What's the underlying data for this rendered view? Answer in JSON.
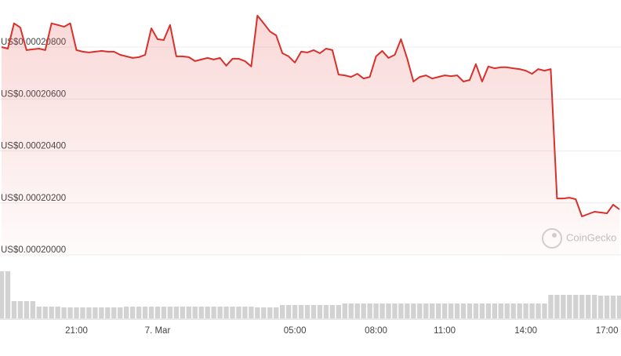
{
  "chart_data": {
    "type": "line",
    "categories": [
      null,
      null,
      null,
      null,
      null,
      null,
      null,
      null,
      null,
      null,
      null,
      null,
      "21:00",
      null,
      null,
      null,
      null,
      null,
      null,
      null,
      null,
      null,
      null,
      null,
      null,
      "7. Mar",
      null,
      null,
      null,
      null,
      null,
      null,
      null,
      null,
      null,
      null,
      null,
      null,
      null,
      null,
      null,
      null,
      null,
      null,
      null,
      null,
      null,
      "05:00",
      null,
      null,
      null,
      null,
      null,
      null,
      null,
      null,
      null,
      null,
      null,
      null,
      "08:00",
      null,
      null,
      null,
      null,
      null,
      null,
      null,
      null,
      null,
      null,
      "11:00",
      null,
      null,
      null,
      null,
      null,
      null,
      null,
      null,
      null,
      null,
      null,
      null,
      "14:00",
      null,
      null,
      null,
      null,
      null,
      null,
      null,
      null,
      null,
      null,
      null,
      null,
      "17:00",
      null,
      null
    ],
    "series": [
      {
        "color": "#d8312c",
        "values": [
          0.000208,
          0.00020794,
          0.00020891,
          0.00020875,
          0.00020788,
          0.00020791,
          0.00020794,
          0.00020788,
          0.00020891,
          0.00020885,
          0.00020878,
          0.00020891,
          0.00020788,
          0.00020782,
          0.00020779,
          0.00020782,
          0.00020785,
          0.00020782,
          0.00020782,
          0.0002077,
          0.00020764,
          0.00020758,
          0.00020761,
          0.0002077,
          0.00020872,
          0.0002083,
          0.00020827,
          0.00020885,
          0.00020764,
          0.00020764,
          0.00020761,
          0.00020746,
          0.00020752,
          0.00020758,
          0.00020752,
          0.00020758,
          0.00020728,
          0.00020755,
          0.00020755,
          0.00020746,
          0.00020725,
          0.00020921,
          0.00020891,
          0.0002086,
          0.00020845,
          0.00020776,
          0.00020764,
          0.0002074,
          0.00020782,
          0.00020779,
          0.00020788,
          0.00020776,
          0.00020794,
          0.00020788,
          0.00020694,
          0.00020691,
          0.00020685,
          0.00020697,
          0.00020679,
          0.00020685,
          0.00020764,
          0.00020785,
          0.00020758,
          0.0002077,
          0.0002083,
          0.00020755,
          0.00020667,
          0.00020685,
          0.00020691,
          0.00020679,
          0.00020685,
          0.00020691,
          0.00020688,
          0.00020691,
          0.00020667,
          0.00020673,
          0.00020734,
          0.00020667,
          0.00020725,
          0.00020718,
          0.00020722,
          0.00020722,
          0.00020718,
          0.00020715,
          0.00020709,
          0.00020697,
          0.00020715,
          0.00020709,
          0.00020715,
          0.00020217,
          0.00020217,
          0.0002022,
          0.00020214,
          0.00020148,
          0.00020157,
          0.00020166,
          0.00020163,
          0.0002016,
          0.00020193,
          0.00020175
        ]
      }
    ],
    "ylim": [
      0.0002,
      0.00020981
    ],
    "yticks": [
      {
        "value": 0.0002,
        "label": "US$0.00020000"
      },
      {
        "value": 0.000202,
        "label": "US$0.00020200"
      },
      {
        "value": 0.000204,
        "label": "US$0.00020400"
      },
      {
        "value": 0.000206,
        "label": "US$0.00020600"
      },
      {
        "value": 0.000208,
        "label": "US$0.00020800"
      }
    ],
    "grid": true,
    "volume": {
      "color": "#d2d2d2",
      "ylim": [
        0,
        60
      ],
      "values": [
        60,
        60,
        22,
        22,
        22,
        22,
        15,
        15,
        15,
        15,
        14,
        14,
        14,
        14,
        14,
        14,
        14,
        14,
        14,
        14,
        15,
        15,
        15,
        15,
        15,
        15,
        15,
        15,
        15,
        15,
        15,
        15,
        15,
        15,
        15,
        15,
        15,
        15,
        15,
        15,
        15,
        14,
        14,
        14,
        14,
        17,
        17,
        17,
        17,
        17,
        17,
        17,
        17,
        17,
        17,
        19,
        19,
        19,
        19,
        19,
        19,
        19,
        19,
        19,
        19,
        19,
        19,
        19,
        19,
        19,
        19,
        19,
        19,
        19,
        19,
        19,
        19,
        19,
        19,
        19,
        19,
        19,
        19,
        19,
        19,
        19,
        19,
        19,
        30,
        30,
        30,
        30,
        30,
        30,
        30,
        30,
        29,
        29,
        29,
        29
      ]
    },
    "watermark": "CoinGecko"
  }
}
